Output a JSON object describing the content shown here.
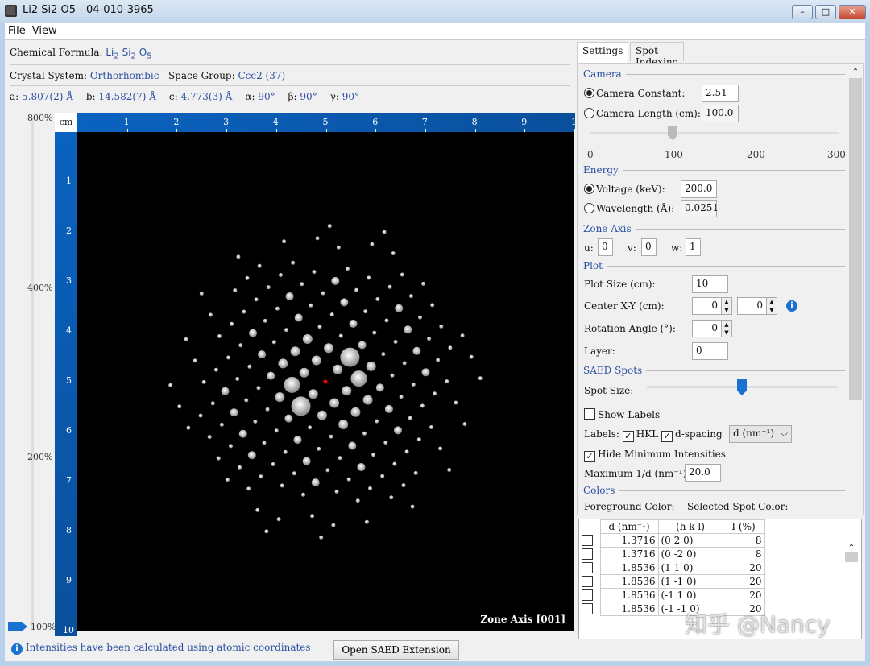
{
  "window": {
    "title": "Li2 Si2 O5 - 04-010-3965",
    "minimize": "–",
    "maximize": "□",
    "close": "✕"
  },
  "menu": [
    "File",
    "View"
  ],
  "crystal": {
    "formula_label": "Chemical Formula:",
    "formula": [
      "Li",
      "2",
      "Si",
      "2",
      "O",
      "5"
    ],
    "system_label": "Crystal System:",
    "system": "Orthorhombic",
    "sg_label": "Space Group:",
    "space_group": "Ccc2 (37)",
    "params": [
      {
        "k": "a:",
        "v": "5.807(2) Å"
      },
      {
        "k": "b:",
        "v": "14.582(7) Å"
      },
      {
        "k": "c:",
        "v": "4.773(3) Å"
      },
      {
        "k": "α:",
        "v": "90°"
      },
      {
        "k": "β:",
        "v": "90°"
      },
      {
        "k": "γ:",
        "v": "90°"
      }
    ]
  },
  "zoom": {
    "labels": [
      "800%",
      "400%",
      "200%",
      "100%"
    ],
    "value": "100%"
  },
  "plot": {
    "unit": "cm",
    "ticks": [
      "1",
      "2",
      "3",
      "4",
      "5",
      "6",
      "7",
      "8",
      "9",
      "10"
    ],
    "zone_label": "Zone Axis [001]",
    "background": "#000000",
    "center_color": "#ff0000"
  },
  "tabs": [
    "Settings",
    "Spot Indexing"
  ],
  "settings": {
    "camera": {
      "title": "Camera",
      "constant_label": "Camera Constant:",
      "constant": "2.51",
      "length_label": "Camera Length (cm):",
      "length": "100.0",
      "selected": "constant",
      "slider_ticks": [
        "0",
        "100",
        "200",
        "300"
      ],
      "slider_value": 100
    },
    "energy": {
      "title": "Energy",
      "voltage_label": "Voltage (keV):",
      "voltage": "200.0",
      "wavelength_label": "Wavelength (Å):",
      "wavelength": "0.0251",
      "selected": "voltage"
    },
    "zone": {
      "title": "Zone Axis",
      "u_label": "u:",
      "u": "0",
      "v_label": "v:",
      "v": "0",
      "w_label": "w:",
      "w": "1"
    },
    "plotsec": {
      "title": "Plot",
      "size_label": "Plot Size (cm):",
      "size": "10",
      "center_label": "Center X-Y (cm):",
      "cx": "0",
      "cy": "0",
      "rot_label": "Rotation Angle (°):",
      "rot": "0",
      "layer_label": "Layer:",
      "layer": "0"
    },
    "spots": {
      "title": "SAED Spots",
      "size_label": "Spot Size:",
      "size_value_fraction": 0.5,
      "show_labels": "Show Labels",
      "labels_label": "Labels:",
      "hkl": "HKL",
      "dspacing": "d-spacing",
      "d_unit": "d (nm⁻¹)",
      "hide_min": "Hide Minimum Intensities",
      "max_label": "Maximum 1/d (nm⁻¹):",
      "max": "20.0"
    },
    "colors": {
      "title": "Colors",
      "fg": "Foreground Color:",
      "sel": "Selected Spot Color:"
    }
  },
  "table": {
    "headers": [
      "d (nm⁻¹)",
      "(h k l)",
      "I (%)"
    ],
    "rows": [
      [
        "1.3716",
        "(0 2 0)",
        "8"
      ],
      [
        "1.3716",
        "(0 -2 0)",
        "8"
      ],
      [
        "1.8536",
        "(1 1 0)",
        "20"
      ],
      [
        "1.8536",
        "(1 -1 0)",
        "20"
      ],
      [
        "1.8536",
        "(-1 1 0)",
        "20"
      ],
      [
        "1.8536",
        "(-1 -1 0)",
        "20"
      ]
    ]
  },
  "status": {
    "message": "Intensities have been calculated using atomic coordinates",
    "button": "Open SAED Extension"
  },
  "watermark": "知乎 @Nancy"
}
